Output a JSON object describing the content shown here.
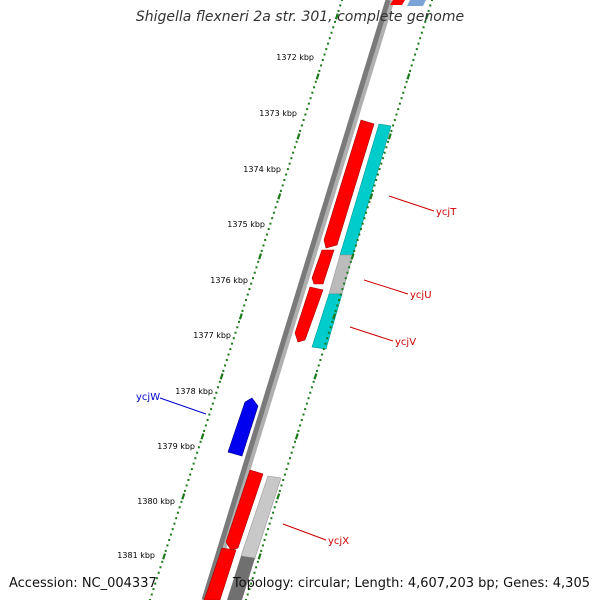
{
  "title": "Shigella flexneri 2a str. 301, complete genome",
  "footer": {
    "accession": "Accession: NC_004337",
    "summary": "Topology: circular; Length: 4,607,203 bp; Genes: 4,305"
  },
  "ticks": [
    "1372 kbp",
    "1373 kbp",
    "1374 kbp",
    "1375 kbp",
    "1376 kbp",
    "1377 kbp",
    "1378 kbp",
    "1379 kbp",
    "1380 kbp",
    "1381 kbp"
  ],
  "gene_labels": [
    {
      "text": "ycjT",
      "color": "#cc0000"
    },
    {
      "text": "ycjU",
      "color": "#cc0000"
    },
    {
      "text": "ycjV",
      "color": "#cc0000"
    },
    {
      "text": "ycjW",
      "color": "#0000cc"
    },
    {
      "text": "ycjX",
      "color": "#cc0000"
    }
  ],
  "colors": {
    "cds_forward": "#ff0000",
    "cds_reverse": "#0000ff",
    "feature_cyan": "#00cccc",
    "feature_gray": "#bbbbbb",
    "backbone": "#808080",
    "tick": "#1a7a1a"
  }
}
